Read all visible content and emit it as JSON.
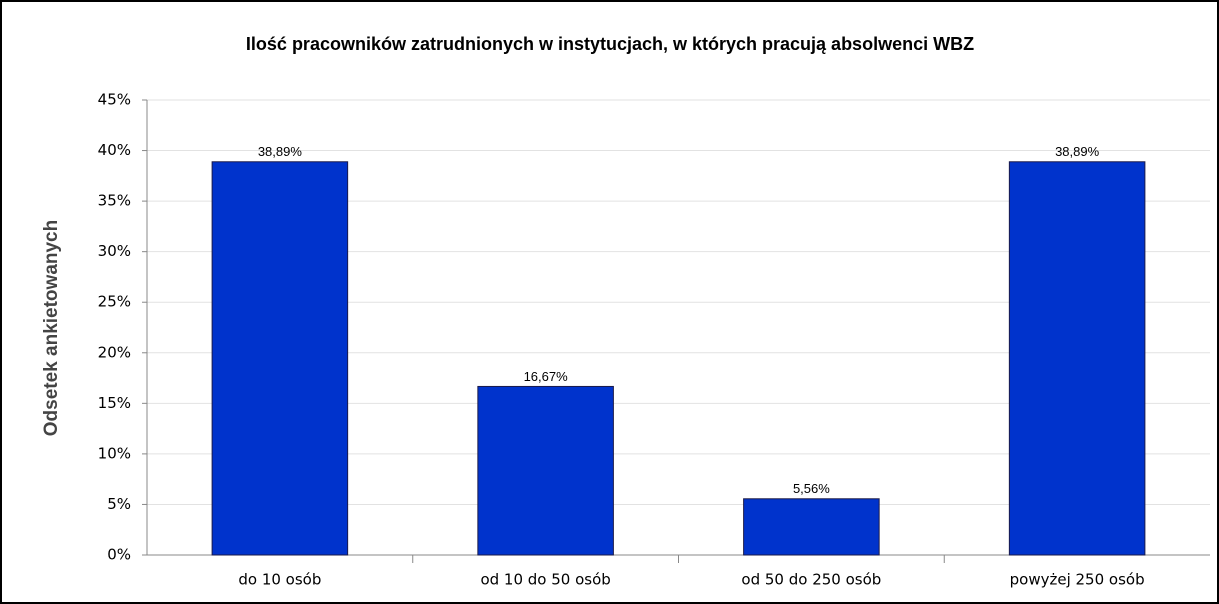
{
  "chart_data": {
    "type": "bar",
    "title": "Ilość pracowników zatrudnionych w instytucjach, w których pracują absolwenci WBZ",
    "y_label": "Odsetek ankietowanych",
    "categories": [
      "do 10 osób",
      "od 10 do 50 osób",
      "od 50 do 250 osób",
      "powyżej 250 osób"
    ],
    "values": [
      38.89,
      16.67,
      5.56,
      38.89
    ],
    "value_labels": [
      "38,89%",
      "16,67%",
      "5,56%",
      "38,89%"
    ],
    "color": "#0033cc",
    "ylim": [
      0,
      45
    ],
    "yticks": [
      {
        "value": 0,
        "label": "0%"
      },
      {
        "value": 5,
        "label": "5%"
      },
      {
        "value": 10,
        "label": "10%"
      },
      {
        "value": 15,
        "label": "15%"
      },
      {
        "value": 20,
        "label": "20%"
      },
      {
        "value": 25,
        "label": "25%"
      },
      {
        "value": 30,
        "label": "30%"
      },
      {
        "value": 35,
        "label": "35%"
      },
      {
        "value": 40,
        "label": "40%"
      },
      {
        "value": 45,
        "label": "45%"
      }
    ],
    "grid": true
  }
}
